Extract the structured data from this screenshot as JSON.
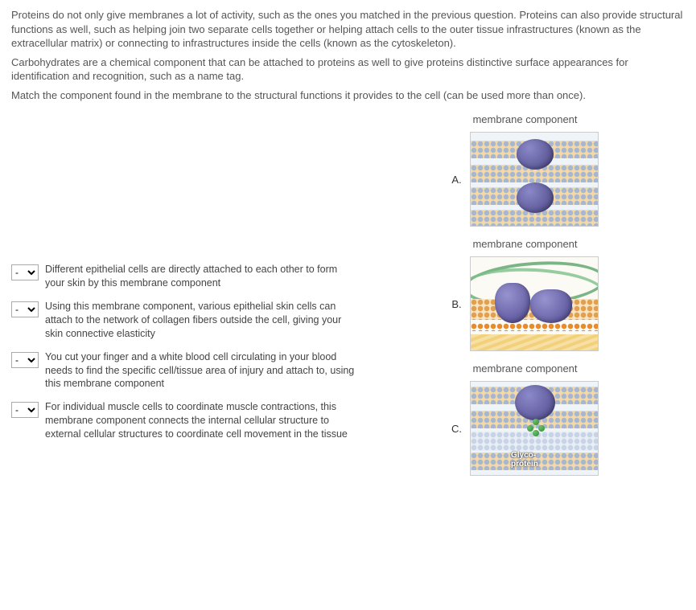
{
  "intro": {
    "p1": "Proteins do not only give membranes a lot of activity, such as the ones you matched in the previous question. Proteins can also provide structural functions as well, such as helping join two separate cells together or helping attach cells to the outer tissue infrastructures (known as the extracellular matrix) or connecting to infrastructures inside the cells (known as the cytoskeleton).",
    "p2": "Carbohydrates are a chemical component that can be attached to proteins as well to give proteins distinctive surface appearances for identification and recognition, such as a name tag.",
    "p3": "Match the component found in the membrane to the structural functions it provides to the cell (can be used more than once)."
  },
  "dropdown_placeholder": "-",
  "questions": [
    "Different epithelial cells are directly attached to each other to form your skin by this membrane component",
    "Using this membrane component, various epithelial skin cells can attach to the network of collagen fibers outside the cell, giving your skin connective elasticity",
    "You cut your finger and a white blood cell circulating in your blood needs to find the specific cell/tissue area of injury and attach to, using this membrane component",
    "For individual muscle cells to coordinate muscle contractions, this membrane component connects the internal cellular structure to external cellular structures to coordinate cell movement in the tissue"
  ],
  "right": {
    "heading": "membrane component",
    "items": [
      {
        "letter": "A."
      },
      {
        "letter": "B."
      },
      {
        "letter": "C."
      }
    ],
    "glyco_label_line1": "Glyco-",
    "glyco_label_line2": "protein"
  }
}
